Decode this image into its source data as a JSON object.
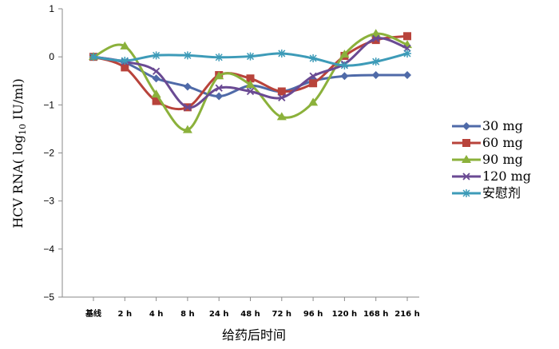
{
  "chart_data": {
    "type": "line",
    "ylabel": "HCV RNA( log10 IU/ml)",
    "ylabel_main": "HCV RNA( log",
    "ylabel_sub": "10",
    "ylabel_end": " IU/ml)",
    "xlabel": "给药后时间",
    "categories": [
      "基线",
      "2 h",
      "4 h",
      "8 h",
      "24 h",
      "48 h",
      "72 h",
      "96 h",
      "120 h",
      "168 h",
      "216 h"
    ],
    "yticks": [
      "1",
      "0",
      "−1",
      "−2",
      "−3",
      "−4",
      "−5"
    ],
    "ylim": [
      -5,
      1
    ],
    "grid": false,
    "legend_position": "right",
    "series": [
      {
        "name": "30 mg",
        "color": "#4f6aa8",
        "marker": "diamond",
        "values": [
          0,
          -0.12,
          -0.45,
          -0.62,
          -0.82,
          -0.6,
          -0.72,
          -0.5,
          -0.4,
          -0.38,
          -0.38
        ]
      },
      {
        "name": "60 mg",
        "color": "#b8433b",
        "marker": "square",
        "values": [
          0,
          -0.22,
          -0.92,
          -1.05,
          -0.38,
          -0.45,
          -0.72,
          -0.55,
          0.02,
          0.35,
          0.43
        ]
      },
      {
        "name": "90 mg",
        "color": "#8bb13b",
        "marker": "triangle",
        "values": [
          0,
          0.22,
          -0.78,
          -1.52,
          -0.4,
          -0.58,
          -1.25,
          -0.95,
          0.05,
          0.48,
          0.25
        ]
      },
      {
        "name": "120 mg",
        "color": "#6a4a93",
        "marker": "x",
        "values": [
          0,
          -0.1,
          -0.3,
          -1.05,
          -0.65,
          -0.72,
          -0.85,
          -0.4,
          -0.15,
          0.38,
          0.18
        ]
      },
      {
        "name": "安慰剂",
        "color": "#3d9bb8",
        "marker": "asterisk",
        "values": [
          0,
          -0.08,
          0.03,
          0.03,
          -0.01,
          0.01,
          0.07,
          -0.03,
          -0.18,
          -0.1,
          0.07
        ]
      }
    ]
  }
}
